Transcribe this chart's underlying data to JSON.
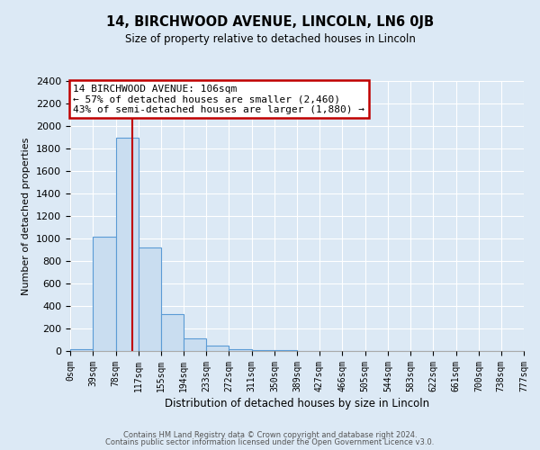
{
  "title": "14, BIRCHWOOD AVENUE, LINCOLN, LN6 0JB",
  "subtitle": "Size of property relative to detached houses in Lincoln",
  "xlabel": "Distribution of detached houses by size in Lincoln",
  "ylabel": "Number of detached properties",
  "bar_color": "#c9ddf0",
  "bar_edge_color": "#5b9bd5",
  "background_color": "#dce9f5",
  "grid_color": "#ffffff",
  "red_line_x": 106,
  "bin_width": 39,
  "bin_starts": [
    0,
    39,
    78,
    117,
    155,
    194,
    233,
    272,
    311,
    350,
    389,
    427,
    466,
    505,
    544,
    583,
    622,
    661,
    700,
    738
  ],
  "bin_labels": [
    "0sqm",
    "39sqm",
    "78sqm",
    "117sqm",
    "155sqm",
    "194sqm",
    "233sqm",
    "272sqm",
    "311sqm",
    "350sqm",
    "389sqm",
    "427sqm",
    "466sqm",
    "505sqm",
    "544sqm",
    "583sqm",
    "622sqm",
    "661sqm",
    "700sqm",
    "738sqm",
    "777sqm"
  ],
  "counts": [
    20,
    1020,
    1900,
    920,
    330,
    110,
    50,
    20,
    10,
    5,
    0,
    0,
    0,
    0,
    0,
    0,
    0,
    0,
    0,
    0
  ],
  "ylim": [
    0,
    2400
  ],
  "yticks": [
    0,
    200,
    400,
    600,
    800,
    1000,
    1200,
    1400,
    1600,
    1800,
    2000,
    2200,
    2400
  ],
  "annotation_title": "14 BIRCHWOOD AVENUE: 106sqm",
  "annotation_line1": "← 57% of detached houses are smaller (2,460)",
  "annotation_line2": "43% of semi-detached houses are larger (1,880) →",
  "annotation_box_color": "#ffffff",
  "annotation_border_color": "#c00000",
  "footer1": "Contains HM Land Registry data © Crown copyright and database right 2024.",
  "footer2": "Contains public sector information licensed under the Open Government Licence v3.0."
}
